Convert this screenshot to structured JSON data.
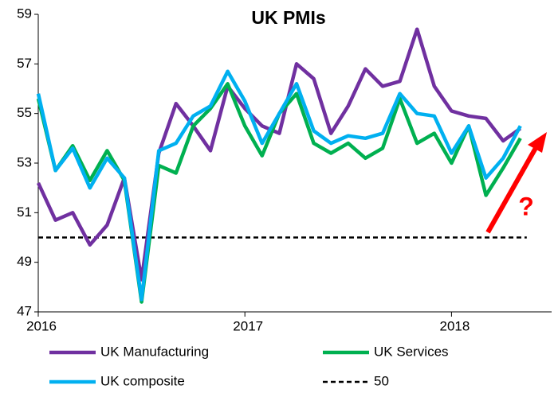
{
  "chart_data": {
    "type": "line",
    "title": "UK PMIs",
    "categories": [
      "2016",
      null,
      null,
      null,
      null,
      null,
      null,
      null,
      null,
      null,
      null,
      null,
      "2017",
      null,
      null,
      null,
      null,
      null,
      null,
      null,
      null,
      null,
      null,
      null,
      "2018",
      null,
      null,
      null,
      null
    ],
    "series": [
      {
        "name": "UK Manufacturing",
        "color": "#7030a0",
        "values": [
          52.2,
          50.7,
          51.0,
          49.7,
          50.5,
          52.4,
          48.3,
          53.4,
          55.4,
          54.5,
          53.5,
          56.1,
          55.2,
          54.5,
          54.2,
          57.0,
          56.4,
          54.2,
          55.3,
          56.8,
          56.1,
          56.3,
          58.4,
          56.1,
          55.1,
          54.9,
          54.8,
          53.9,
          54.4
        ]
      },
      {
        "name": "UK Services",
        "color": "#00b050",
        "values": [
          55.6,
          52.7,
          53.7,
          52.3,
          53.5,
          52.3,
          47.4,
          52.9,
          52.6,
          54.5,
          55.2,
          56.2,
          54.5,
          53.3,
          55.0,
          55.8,
          53.8,
          53.4,
          53.8,
          53.2,
          53.6,
          55.6,
          53.8,
          54.2,
          53.0,
          54.5,
          51.7,
          52.8,
          54.0
        ]
      },
      {
        "name": "UK composite",
        "color": "#00b0f0",
        "values": [
          55.8,
          52.7,
          53.6,
          52.0,
          53.2,
          52.4,
          47.5,
          53.5,
          53.8,
          54.9,
          55.3,
          56.7,
          55.5,
          53.8,
          55.0,
          56.2,
          54.3,
          53.8,
          54.1,
          54.0,
          54.2,
          55.8,
          55.0,
          54.9,
          53.4,
          54.5,
          52.4,
          53.2,
          54.5
        ]
      }
    ],
    "reference": {
      "name": "50",
      "value": 50,
      "color": "#000000"
    },
    "annotation": {
      "text": "?",
      "color": "#ff0000"
    },
    "ylim": [
      47,
      59
    ],
    "yticks": [
      47,
      49,
      51,
      53,
      55,
      57,
      59
    ],
    "grid": false
  }
}
